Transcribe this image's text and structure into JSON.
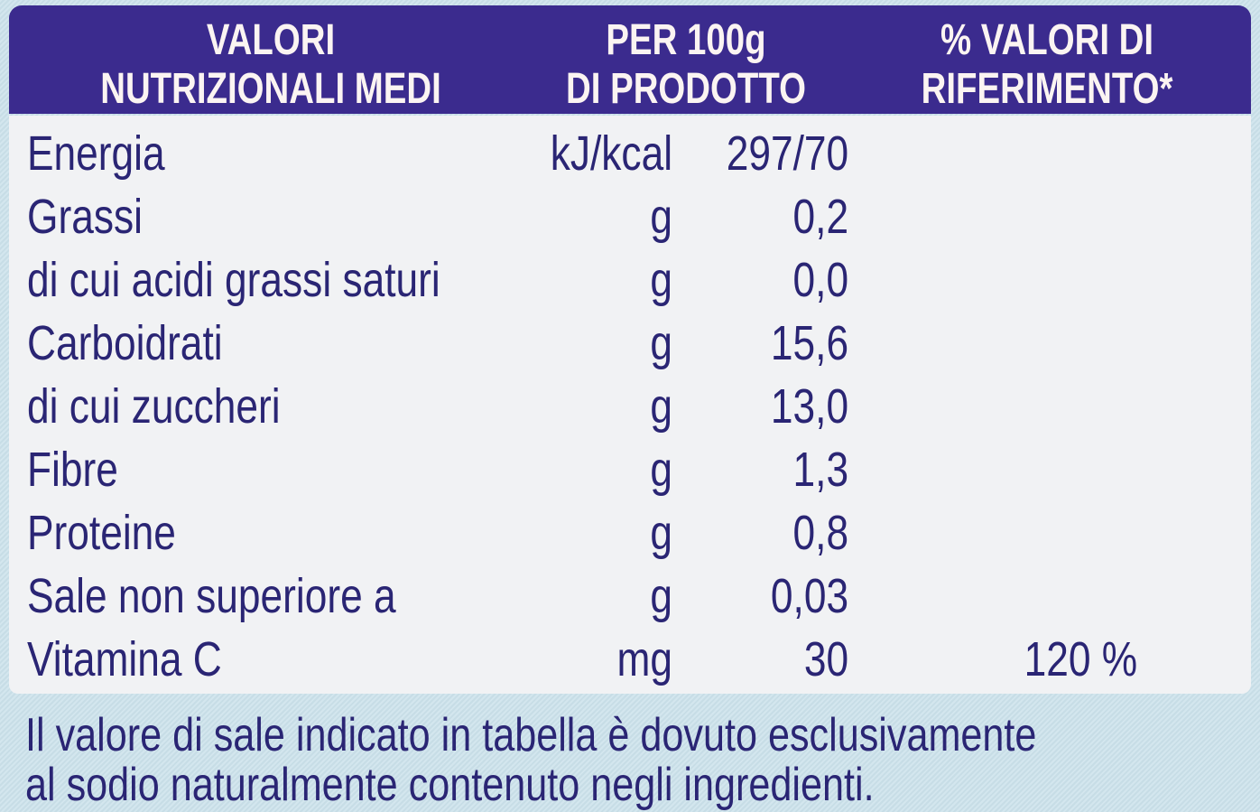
{
  "header": {
    "col1": [
      "VALORI",
      "NUTRIZIONALI MEDI"
    ],
    "col2": [
      "PER 100g",
      "DI PRODOTTO"
    ],
    "col3": [
      "% VALORI DI",
      "RIFERIMENTO*"
    ]
  },
  "rows": [
    {
      "label": "Energia",
      "unit": "kJ/kcal",
      "value": "297/70",
      "percent": ""
    },
    {
      "label": "Grassi",
      "unit": "g",
      "value": "0,2",
      "percent": ""
    },
    {
      "label": "di cui acidi grassi saturi",
      "unit": "g",
      "value": "0,0",
      "percent": ""
    },
    {
      "label": "Carboidrati",
      "unit": "g",
      "value": "15,6",
      "percent": ""
    },
    {
      "label": "di cui zuccheri",
      "unit": "g",
      "value": "13,0",
      "percent": ""
    },
    {
      "label": "Fibre",
      "unit": "g",
      "value": "1,3",
      "percent": ""
    },
    {
      "label": "Proteine",
      "unit": "g",
      "value": "0,8",
      "percent": ""
    },
    {
      "label": "Sale non superiore a",
      "unit": "g",
      "value": "0,03",
      "percent": ""
    },
    {
      "label": "Vitamina C",
      "unit": "mg",
      "value": "30",
      "percent": "120 %"
    }
  ],
  "footnote": [
    "Il valore di sale indicato in tabella è dovuto esclusivamente",
    "al sodio naturalmente contenuto negli ingredienti."
  ],
  "colors": {
    "header_bg": "#3b2b8e",
    "text": "#2a2574",
    "panel": "#f1f2f4",
    "background": "#cfe2ea"
  }
}
